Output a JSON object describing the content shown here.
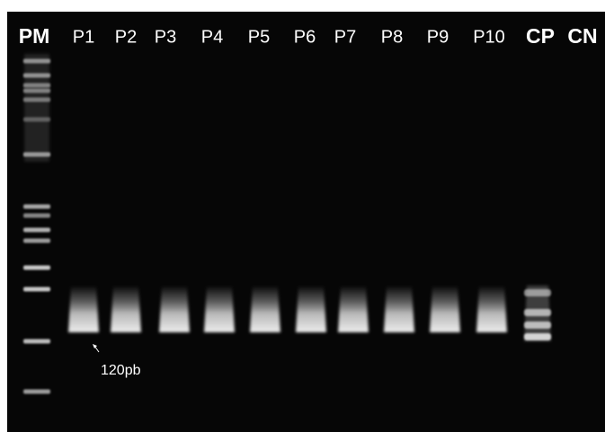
{
  "lanes": [
    "PM",
    "P1",
    "P2",
    "P3",
    "P4",
    "P5",
    "P6",
    "P7",
    "P8",
    "P9",
    "P10",
    "CP",
    "CN"
  ],
  "annotation": "120pb"
}
